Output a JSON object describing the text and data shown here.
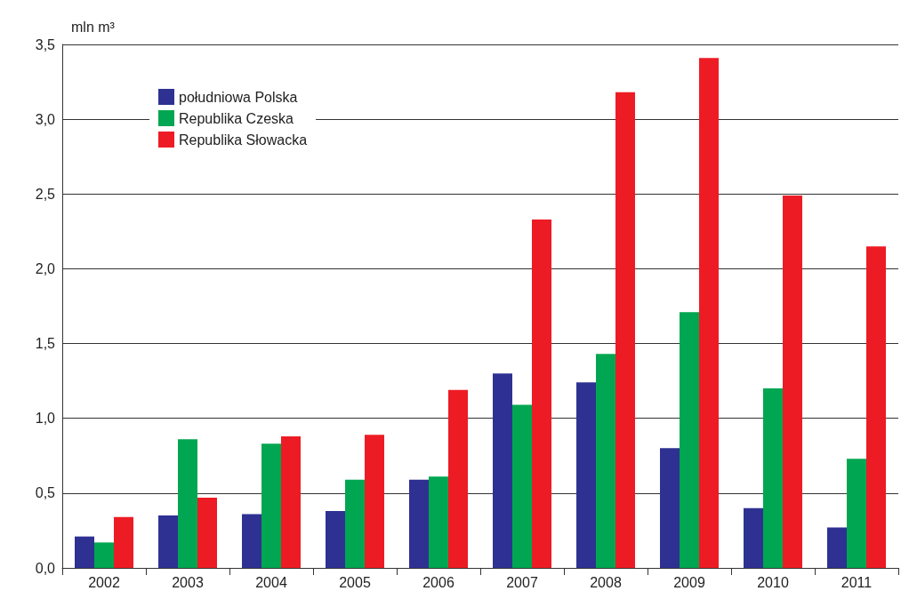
{
  "chart_data": {
    "type": "bar",
    "ylabel": "mln m³",
    "categories": [
      "2002",
      "2003",
      "2004",
      "2005",
      "2006",
      "2007",
      "2008",
      "2009",
      "2010",
      "2011"
    ],
    "series": [
      {
        "name": "południowa Polska",
        "color": "#2e3192",
        "values": [
          0.21,
          0.35,
          0.36,
          0.38,
          0.59,
          1.3,
          1.24,
          0.8,
          0.4,
          0.27
        ]
      },
      {
        "name": "Republika Czeska",
        "color": "#00a651",
        "values": [
          0.17,
          0.86,
          0.83,
          0.59,
          0.61,
          1.09,
          1.43,
          1.71,
          1.2,
          0.73
        ]
      },
      {
        "name": "Republika Słowacka",
        "color": "#ed1c24",
        "values": [
          0.34,
          0.47,
          0.88,
          0.89,
          1.19,
          2.33,
          3.18,
          3.41,
          2.49,
          2.15
        ]
      }
    ],
    "ylim": [
      0,
      3.5
    ],
    "yticks": [
      {
        "value": 0,
        "label": "0,0"
      },
      {
        "value": 0.5,
        "label": "0,5"
      },
      {
        "value": 1,
        "label": "1,0"
      },
      {
        "value": 1.5,
        "label": "1,5"
      },
      {
        "value": 2,
        "label": "2,0"
      },
      {
        "value": 2.5,
        "label": "2,5"
      },
      {
        "value": 3,
        "label": "3,0"
      },
      {
        "value": 3.5,
        "label": "3,5"
      }
    ],
    "grid": "y",
    "legend": "top left"
  }
}
